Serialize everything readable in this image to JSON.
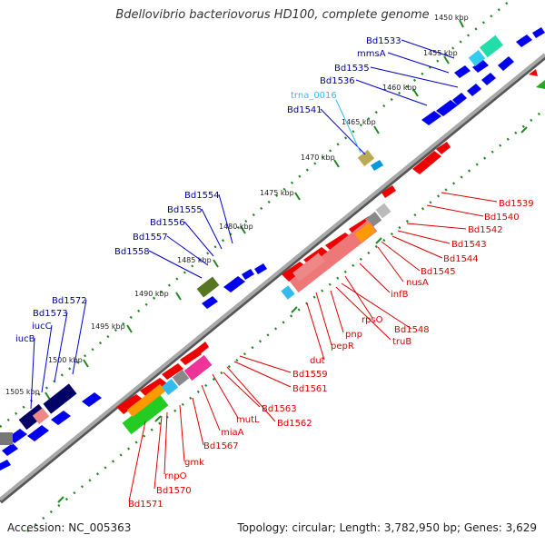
{
  "title": "Bdellovibrio bacteriovorus HD100, complete genome",
  "footer": {
    "accession": "Accession: NC_005363",
    "info": "Topology: circular; Length: 3,782,950 bp; Genes: 3,629"
  },
  "ticks": [
    "1450 kbp",
    "1455 kbp",
    "1460 kbp",
    "1465 kbp",
    "1470 kbp",
    "1475 kbp",
    "1480 kbp",
    "1485 kbp",
    "1490 kbp",
    "1495 kbp",
    "1500 kbp",
    "1505 kbp"
  ],
  "labels_forward": [
    "Bd1533",
    "mmsA",
    "Bd1535",
    "Bd1536",
    "Bd1541",
    "Bd1554",
    "Bd1555",
    "Bd1556",
    "Bd1557",
    "Bd1558",
    "Bd1572",
    "Bd1573",
    "iucC",
    "iucB"
  ],
  "labels_trna": [
    "trna_0016"
  ],
  "labels_reverse": [
    "Bd1539",
    "Bd1540",
    "Bd1542",
    "Bd1543",
    "Bd1544",
    "Bd1545",
    "nusA",
    "infB",
    "rpsO",
    "Bd1548",
    "truB",
    "pnp",
    "pepR",
    "dut",
    "Bd1559",
    "Bd1561",
    "Bd1563",
    "Bd1562",
    "mutL",
    "miaA",
    "Bd1567",
    "gmk",
    "rnpO",
    "Bd1570",
    "Bd1571"
  ],
  "colors": {
    "forward_gene": "#0000ee",
    "reverse_gene": "#ee0000",
    "forward_label": "#0000aa",
    "reverse_label": "#dd0000",
    "trna_label": "#33bbee",
    "backbone": "#999999",
    "dotted_track": "#228822"
  }
}
